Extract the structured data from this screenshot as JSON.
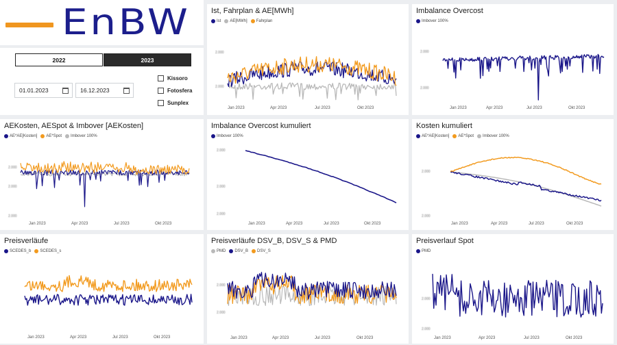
{
  "colors": {
    "navy": "#1a1689",
    "orange": "#f29a1e",
    "gray": "#b9b9b9",
    "logo_orange": "#f0961f",
    "logo_blue": "#1c1e8c"
  },
  "logo": {
    "text": "EnBW"
  },
  "years": {
    "items": [
      {
        "label": "2022",
        "selected": false
      },
      {
        "label": "2023",
        "selected": true
      }
    ]
  },
  "dates": {
    "start": "01.01.2023",
    "end": "16.12.2023"
  },
  "plants": [
    {
      "label": "Kissoro",
      "checked": false
    },
    {
      "label": "Fotosfera",
      "checked": false
    },
    {
      "label": "Sunplex",
      "checked": false
    }
  ],
  "panels": [
    {
      "title": "Ist, Fahrplan & AE[MWh]",
      "legend": [
        {
          "name": "Ist",
          "color": "#1a1689"
        },
        {
          "name": "AE[MWh]",
          "color": "#b9b9b9"
        },
        {
          "name": "Fahrplan",
          "color": "#f29a1e"
        }
      ],
      "xticks": [
        "Jan 2023",
        "Apr 2023",
        "Jul 2023",
        "Okt 2023"
      ],
      "yticks": [
        "2.000",
        "2.000"
      ]
    },
    {
      "title": "Imbalance Overcost",
      "legend": [
        {
          "name": "Imbover 100%",
          "color": "#1a1689"
        }
      ],
      "xticks": [
        "Jan 2023",
        "Apr 2023",
        "Jul 2023",
        "Okt 2023"
      ],
      "yticks": [
        "2.000",
        "2.000"
      ]
    },
    {
      "title": "AEKosten, AESpot & Imbover [AEKosten]",
      "legend": [
        {
          "name": "AE*AE[Kosten]",
          "color": "#1a1689"
        },
        {
          "name": "AE*Spot",
          "color": "#f29a1e"
        },
        {
          "name": "Imbover 100%",
          "color": "#b9b9b9"
        }
      ],
      "xticks": [
        "Jan 2023",
        "Apr 2023",
        "Jul 2023",
        "Okt 2023"
      ],
      "yticks": [
        "2.000",
        "2.000",
        "2.000"
      ]
    },
    {
      "title": "Imbalance Overcost kumuliert",
      "legend": [
        {
          "name": "Imbover 100%",
          "color": "#1a1689"
        }
      ],
      "xticks": [
        "Jan 2023",
        "Apr 2023",
        "Jul 2023",
        "Okt 2023"
      ],
      "yticks": [
        "2.000",
        "2.000",
        "2.000"
      ]
    },
    {
      "title": "Kosten kumuliert",
      "legend": [
        {
          "name": "AE*AE[Kosten]",
          "color": "#1a1689"
        },
        {
          "name": "AE*Spot",
          "color": "#f29a1e"
        },
        {
          "name": "Imbover 100%",
          "color": "#b9b9b9"
        }
      ],
      "xticks": [
        "Jan 2023",
        "Apr 2023",
        "Jul 2023",
        "Okt 2023"
      ],
      "yticks": [
        "2.000",
        "2.000",
        "2.000"
      ]
    },
    {
      "title": "Preisverläufe",
      "legend": [
        {
          "name": "SCEDES_b",
          "color": "#1a1689"
        },
        {
          "name": "SCEDES_s",
          "color": "#f29a1e"
        }
      ],
      "xticks": [
        "Jan 2023",
        "Apr 2023",
        "Jul 2023",
        "Okt 2023"
      ],
      "yticks": []
    },
    {
      "title": "Preisverläufe DSV_B, DSV_S & PMD",
      "legend": [
        {
          "name": "PMD",
          "color": "#b9b9b9"
        },
        {
          "name": "DSV_B",
          "color": "#1a1689"
        },
        {
          "name": "DSV_S",
          "color": "#f29a1e"
        }
      ],
      "xticks": [
        "Jan 2023",
        "Apr 2023",
        "Jul 2023",
        "Okt 2023"
      ],
      "yticks": [
        "2.000",
        "2.000"
      ]
    },
    {
      "title": "Preisverlauf Spot",
      "legend": [
        {
          "name": "PMD",
          "color": "#1a1689"
        }
      ],
      "xticks": [
        "Jan 2023",
        "Apr 2023",
        "Jul 2023",
        "Okt 2023"
      ],
      "yticks": [
        "2.000",
        "2.000"
      ]
    }
  ]
}
